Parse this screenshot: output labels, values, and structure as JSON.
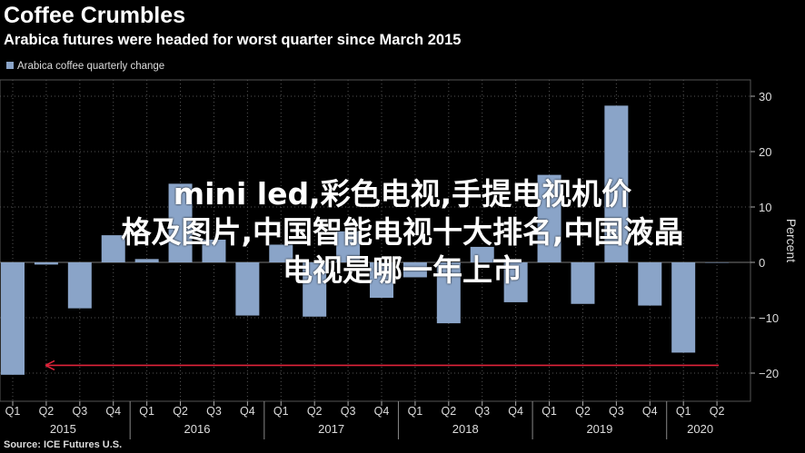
{
  "header": {
    "title": "Coffee Crumbles",
    "subtitle": "Arabica futures were headed for worst quarter since March 2015"
  },
  "footer": {
    "source": "Source: ICE Futures U.S."
  },
  "overlay": {
    "line1": "mini led,彩色电视,手提电视机价",
    "line2": "格及图片,中国智能电视十大排名,中国液晶",
    "line3": "电视是哪一年上市"
  },
  "colors": {
    "background": "#000000",
    "bar": "#8aa4c8",
    "arrow": "#e0233a",
    "grid": "#555555",
    "text": "#ffffff"
  },
  "chart_data": {
    "type": "bar",
    "legend": {
      "label": "Arabica coffee quarterly change",
      "position": "top-left"
    },
    "ylabel": "Percent",
    "y_axis_side": "right",
    "ylim": [
      -25,
      32
    ],
    "yticks": [
      30,
      20,
      10,
      0,
      -10,
      -20
    ],
    "ytick_labels": [
      "30",
      "20",
      "10",
      "0",
      "−10",
      "−20"
    ],
    "grid": true,
    "categories": [
      "Q1",
      "Q2",
      "Q3",
      "Q4",
      "Q1",
      "Q2",
      "Q3",
      "Q4",
      "Q1",
      "Q2",
      "Q3",
      "Q4",
      "Q1",
      "Q2",
      "Q3",
      "Q4",
      "Q1",
      "Q2",
      "Q3",
      "Q4",
      "Q1",
      "Q2"
    ],
    "years": [
      {
        "label": "2015",
        "quarters": 4
      },
      {
        "label": "2016",
        "quarters": 4
      },
      {
        "label": "2017",
        "quarters": 4
      },
      {
        "label": "2018",
        "quarters": 4
      },
      {
        "label": "2019",
        "quarters": 4
      },
      {
        "label": "2020",
        "quarters": 2
      }
    ],
    "series": [
      {
        "name": "Arabica coffee quarterly change",
        "values": [
          -20.3,
          -0.4,
          -8.3,
          4.9,
          0.6,
          14.2,
          4.1,
          -9.6,
          3.2,
          -9.8,
          5.6,
          -6.4,
          -2.7,
          -11.0,
          2.8,
          -7.2,
          15.8,
          -7.5,
          28.3,
          -7.8,
          -16.3,
          0
        ]
      }
    ],
    "annotation": {
      "type": "arrow",
      "from": "Q2 2020",
      "to": "Q1 2015",
      "y": -18.6,
      "color": "#e0233a"
    }
  }
}
